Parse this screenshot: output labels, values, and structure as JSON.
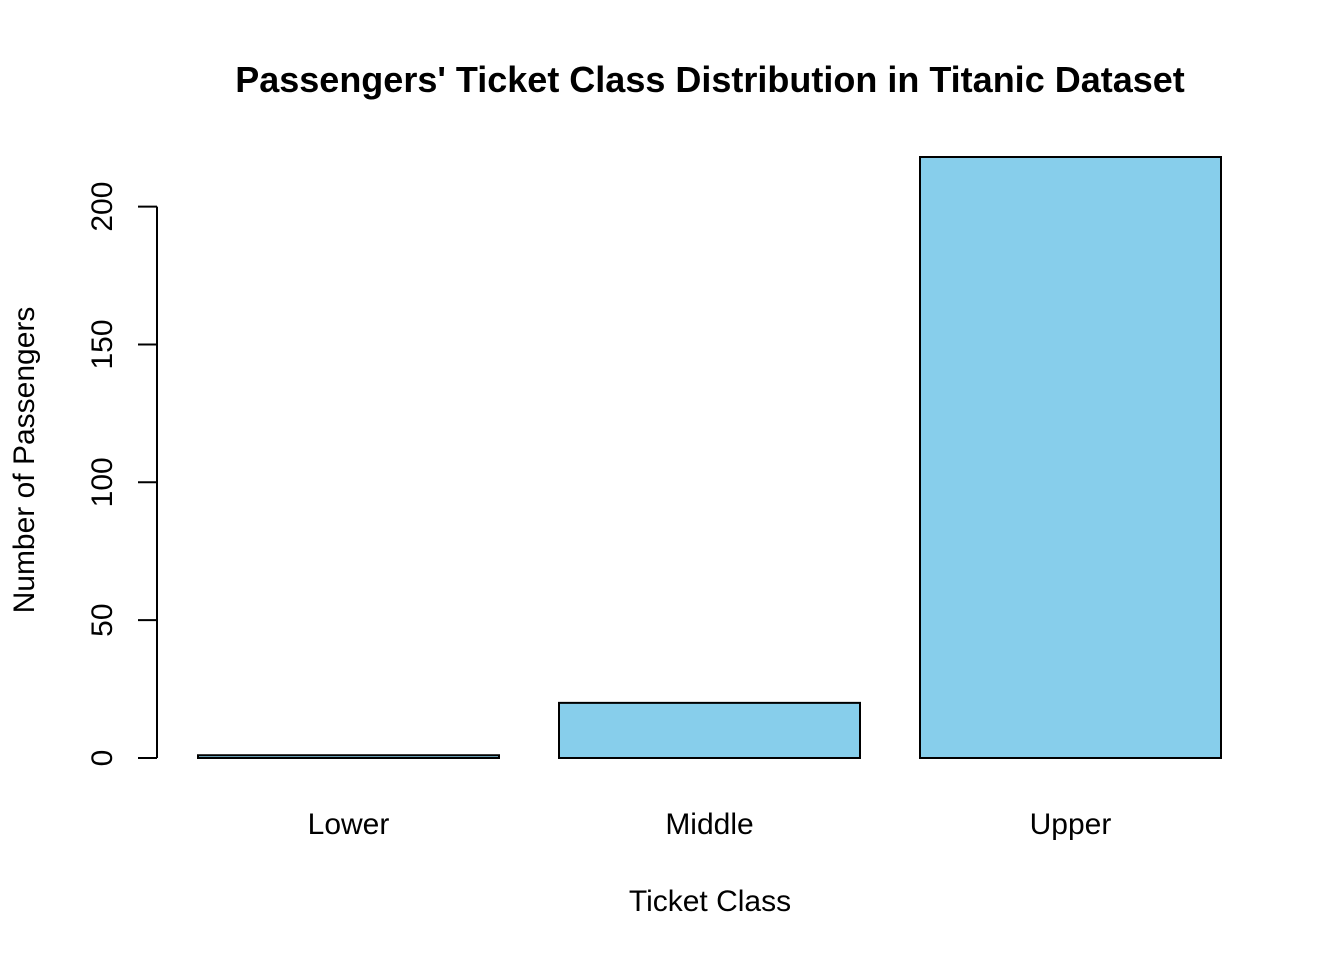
{
  "chart_data": {
    "type": "bar",
    "title": "Passengers' Ticket Class Distribution in Titanic Dataset",
    "xlabel": "Ticket Class",
    "ylabel": "Number of Passengers",
    "categories": [
      "Lower",
      "Middle",
      "Upper"
    ],
    "values": [
      1,
      20,
      218
    ],
    "ylim": [
      0,
      218
    ],
    "yticks": [
      0,
      50,
      100,
      150,
      200
    ],
    "ytick_labels": [
      "0",
      "50",
      "100",
      "150",
      "200"
    ],
    "grid": false,
    "legend": "none",
    "bar_color": "#87CEEB",
    "outline_color": "#000000"
  }
}
